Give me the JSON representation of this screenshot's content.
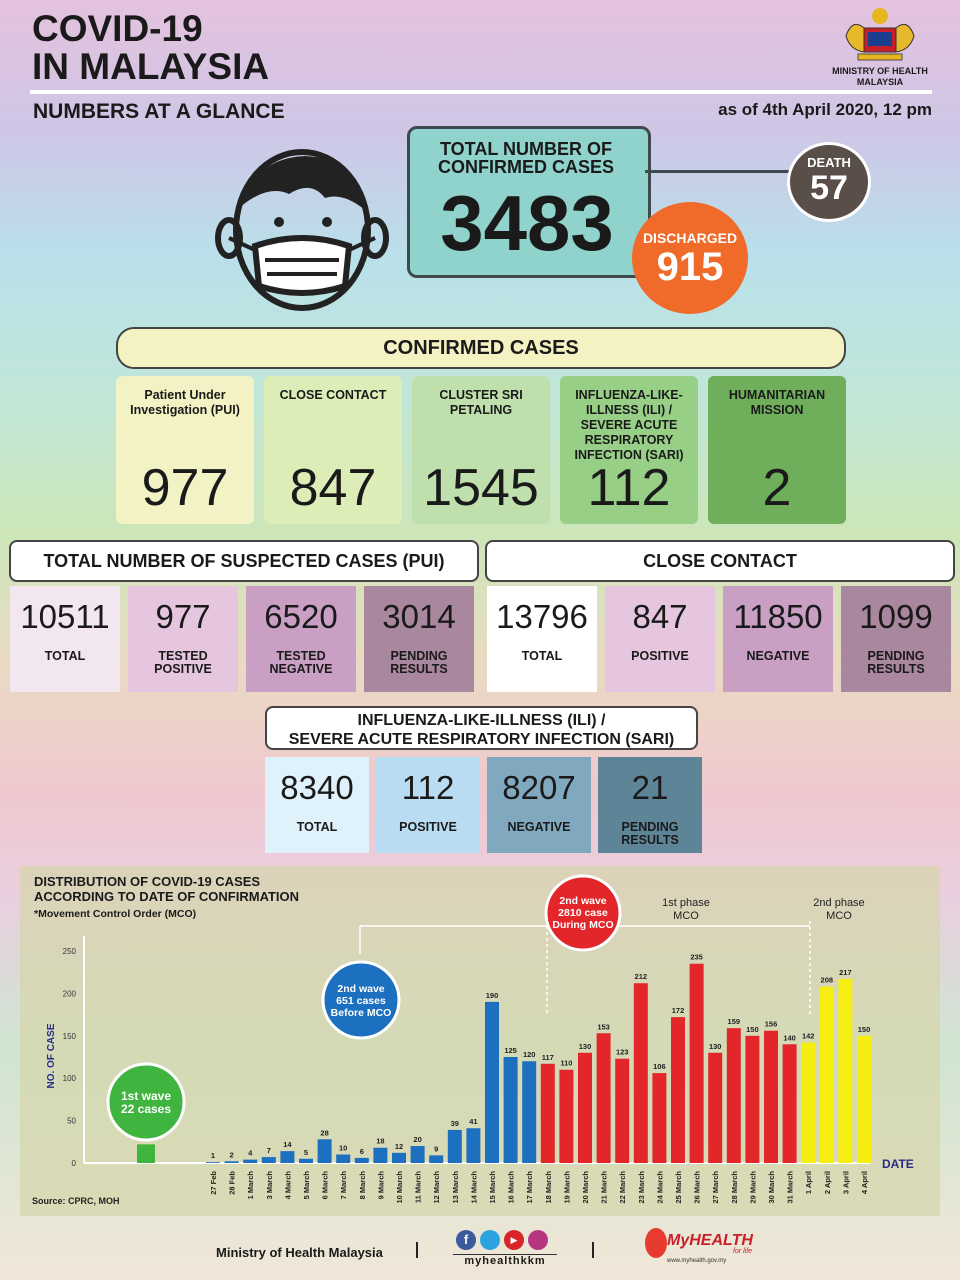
{
  "header": {
    "title_line1": "COVID-19",
    "title_line2": "IN MALAYSIA",
    "subtitle": "NUMBERS AT A GLANCE",
    "as_of": "as of 4th April 2020, 12 pm",
    "ministry_line1": "MINISTRY OF HEALTH",
    "ministry_line2": "MALAYSIA"
  },
  "summary": {
    "total_label_line1": "TOTAL NUMBER OF",
    "total_label_line2": "CONFIRMED CASES",
    "total_value": "3483",
    "death_label": "DEATH",
    "death_value": "57",
    "discharged_label": "DISCHARGED",
    "discharged_value": "915"
  },
  "confirmed": {
    "heading": "CONFIRMED CASES",
    "cards": [
      {
        "label": "Patient Under Investigation (PUI)",
        "value": "977",
        "color": "#f3f2c4"
      },
      {
        "label": "CLOSE CONTACT",
        "value": "847",
        "color": "#dcedb8"
      },
      {
        "label": "CLUSTER SRI PETALING",
        "value": "1545",
        "color": "#bfe0ad"
      },
      {
        "label": "INFLUENZA-LIKE-ILLNESS (ILI) / SEVERE ACUTE RESPIRATORY INFECTION (SARI)",
        "value": "112",
        "color": "#98cf86"
      },
      {
        "label": "HUMANITARIAN MISSION",
        "value": "2",
        "color": "#6fae5b"
      }
    ]
  },
  "pui": {
    "heading": "TOTAL NUMBER OF SUSPECTED CASES (PUI)",
    "stats": [
      {
        "value": "10511",
        "label": "TOTAL",
        "color": "#f2e6ef"
      },
      {
        "value": "977",
        "label": "TESTED POSITIVE",
        "color": "#e6c6df"
      },
      {
        "value": "6520",
        "label": "TESTED NEGATIVE",
        "color": "#c9a0c3"
      },
      {
        "value": "3014",
        "label": "PENDING RESULTS",
        "color": "#a9879f"
      }
    ]
  },
  "close_contact": {
    "heading": "CLOSE CONTACT",
    "stats": [
      {
        "value": "13796",
        "label": "TOTAL",
        "color": "#ffffff"
      },
      {
        "value": "847",
        "label": "POSITIVE",
        "color": "#e6c6df"
      },
      {
        "value": "11850",
        "label": "NEGATIVE",
        "color": "#c9a0c3"
      },
      {
        "value": "1099",
        "label": "PENDING RESULTS",
        "color": "#a9879f"
      }
    ]
  },
  "ili": {
    "heading_line1": "INFLUENZA-LIKE-ILLNESS (ILI) /",
    "heading_line2": "SEVERE ACUTE RESPIRATORY INFECTION (SARI)",
    "stats": [
      {
        "value": "8340",
        "label": "TOTAL",
        "color": "#dff1fb"
      },
      {
        "value": "112",
        "label": "POSITIVE",
        "color": "#b9dcf2"
      },
      {
        "value": "8207",
        "label": "NEGATIVE",
        "color": "#80a9c0"
      },
      {
        "value": "21",
        "label": "PENDING RESULTS",
        "color": "#5d8597"
      }
    ]
  },
  "chart_data": {
    "type": "bar",
    "title_line1": "DISTRIBUTION OF COVID-19 CASES",
    "title_line2": "ACCORDING TO DATE OF CONFIRMATION",
    "subtitle": "*Movement Control Order (MCO)",
    "ylabel": "NO. OF CASE",
    "xlabel": "DATE",
    "ylim": [
      0,
      250
    ],
    "yticks": [
      0,
      50,
      100,
      150,
      200,
      250
    ],
    "source": "Source: CPRC, MOH",
    "first_wave": {
      "label_line1": "1st wave",
      "label_line2": "22 cases",
      "value": 22
    },
    "second_wave_before": {
      "label_line1": "2nd wave",
      "label_line2": "651 cases",
      "label_line3": "Before MCO"
    },
    "second_wave_during": {
      "label_line1": "2nd wave",
      "label_line2": "2810 case",
      "label_line3": "During MCO"
    },
    "phase1_label_line1": "1st phase",
    "phase1_label_line2": "MCO",
    "phase2_label_line1": "2nd phase",
    "phase2_label_line2": "MCO",
    "colors": {
      "wave1": "#3fb43f",
      "before_mco": "#1d6fbf",
      "phase1": "#e3262a",
      "phase2": "#f7ee11"
    },
    "categories": [
      "27 Feb",
      "28 Feb",
      "1 March",
      "3 March",
      "4 March",
      "5 March",
      "6 March",
      "7 March",
      "8 March",
      "9 March",
      "10 March",
      "11 March",
      "12 March",
      "13 March",
      "14 March",
      "15 March",
      "16 March",
      "17 March",
      "18 March",
      "19 March",
      "20 March",
      "21 March",
      "22 March",
      "23 March",
      "24 March",
      "25 March",
      "26 March",
      "27 March",
      "28 March",
      "29 March",
      "30 March",
      "31 March",
      "1 April",
      "2 April",
      "3 April",
      "4 April"
    ],
    "values": [
      1,
      2,
      4,
      7,
      14,
      5,
      28,
      10,
      6,
      18,
      12,
      20,
      9,
      39,
      41,
      190,
      125,
      120,
      117,
      110,
      130,
      153,
      123,
      212,
      106,
      172,
      235,
      130,
      159,
      150,
      156,
      140,
      142,
      208,
      217,
      150
    ],
    "groups": [
      "before_mco",
      "before_mco",
      "before_mco",
      "before_mco",
      "before_mco",
      "before_mco",
      "before_mco",
      "before_mco",
      "before_mco",
      "before_mco",
      "before_mco",
      "before_mco",
      "before_mco",
      "before_mco",
      "before_mco",
      "before_mco",
      "before_mco",
      "before_mco",
      "phase1",
      "phase1",
      "phase1",
      "phase1",
      "phase1",
      "phase1",
      "phase1",
      "phase1",
      "phase1",
      "phase1",
      "phase1",
      "phase1",
      "phase1",
      "phase1",
      "phase2",
      "phase2",
      "phase2",
      "phase2"
    ]
  },
  "footer": {
    "ministry": "Ministry of Health Malaysia",
    "social_handle": "myhealthkkm",
    "brand": "MyHEALTH",
    "brand_tag": "for life",
    "website": "www.myhealth.gov.my"
  }
}
